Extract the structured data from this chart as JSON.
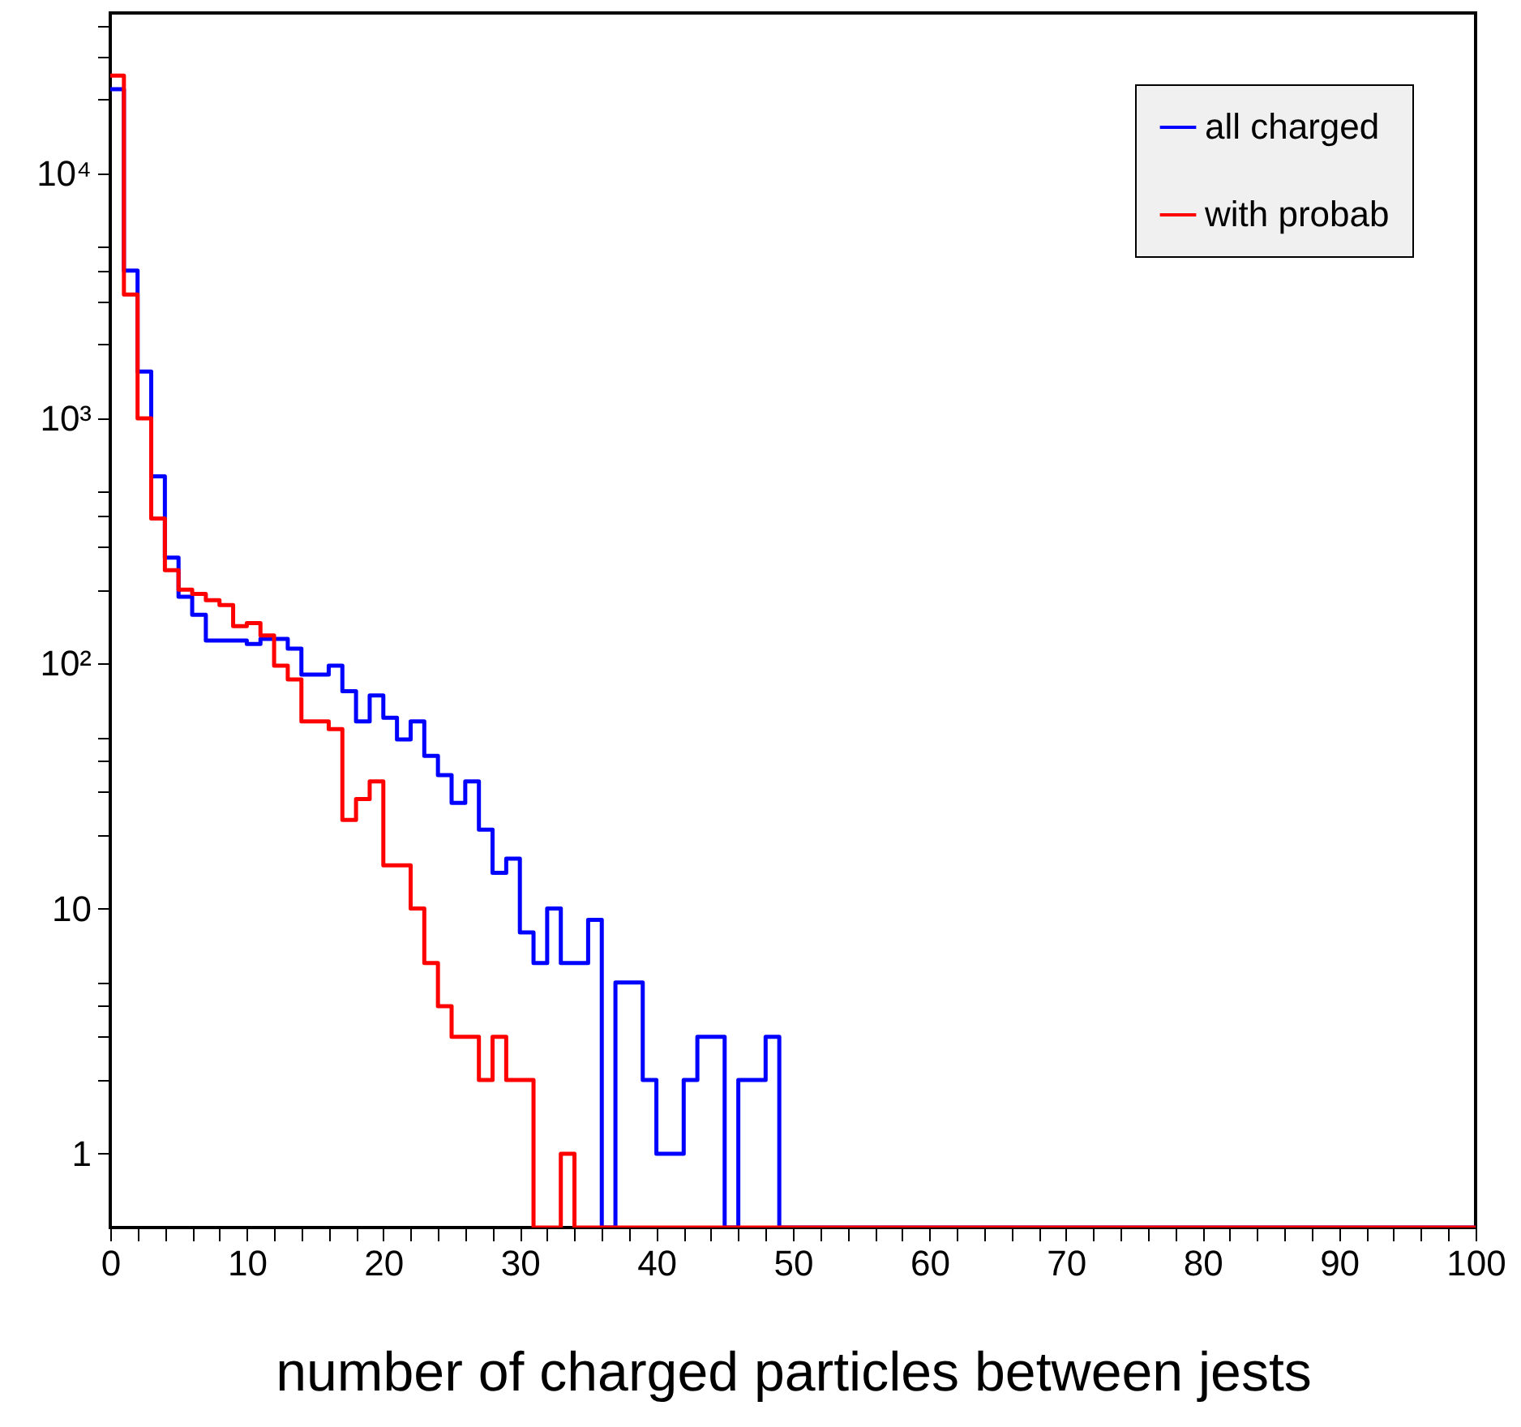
{
  "chart_data": {
    "type": "histogram",
    "xlabel": "number of charged particles between jests",
    "bins": [
      0,
      1,
      2,
      3,
      4,
      5,
      6,
      7,
      8,
      9,
      10,
      11,
      12,
      13,
      14,
      15,
      16,
      17,
      18,
      19,
      20,
      21,
      22,
      23,
      24,
      25,
      26,
      27,
      28,
      29,
      30,
      31,
      32,
      33,
      34,
      35,
      36,
      37,
      38,
      39,
      40,
      41,
      42,
      43,
      44,
      45,
      46,
      47,
      48,
      49,
      50,
      51,
      52,
      53,
      54,
      55,
      56,
      57,
      58,
      59,
      60,
      61,
      62,
      63,
      64,
      65,
      66,
      67,
      68,
      69,
      70,
      71,
      72,
      73,
      74,
      75,
      76,
      77,
      78,
      79,
      80,
      81,
      82,
      83,
      84,
      85,
      86,
      87,
      88,
      89,
      90,
      91,
      92,
      93,
      94,
      95,
      96,
      97,
      98,
      99,
      100
    ],
    "series": [
      {
        "name": "all charged",
        "color": "#0000ff",
        "values": [
          22000,
          4000,
          1550,
          580,
          270,
          187,
          158,
          124,
          124,
          124,
          120,
          126,
          126,
          115,
          90,
          90,
          98,
          77,
          58,
          74,
          60,
          49,
          58,
          42,
          35,
          27,
          33,
          21,
          14,
          16,
          8,
          6,
          10,
          6,
          6,
          9,
          null,
          5,
          5,
          2,
          1,
          1,
          2,
          3,
          3,
          null,
          2,
          2,
          3,
          null,
          null,
          null,
          null,
          null,
          null,
          null,
          null,
          null,
          null,
          null,
          null,
          null,
          null,
          null,
          null,
          null,
          null,
          null,
          null,
          null,
          null,
          null,
          null,
          null,
          null,
          null,
          null,
          null,
          null,
          null,
          null,
          null,
          null,
          null,
          null,
          null,
          null,
          null,
          null,
          null,
          null,
          null,
          null,
          null,
          null,
          null,
          null,
          null,
          null,
          null
        ]
      },
      {
        "name": "with probab",
        "color": "#ff0000",
        "values": [
          25000,
          3200,
          1000,
          390,
          240,
          200,
          192,
          181,
          173,
          142,
          146,
          130,
          98,
          86,
          58,
          58,
          54,
          23,
          28,
          33,
          15,
          15,
          10,
          6,
          4,
          3,
          3,
          2,
          3,
          2,
          2,
          null,
          null,
          1,
          null,
          null,
          null,
          null,
          null,
          null,
          null,
          null,
          null,
          null,
          null,
          null,
          null,
          null,
          null,
          null,
          null,
          null,
          null,
          null,
          null,
          null,
          null,
          null,
          null,
          null,
          null,
          null,
          null,
          null,
          null,
          null,
          null,
          null,
          null,
          null,
          null,
          null,
          null,
          null,
          null,
          null,
          null,
          null,
          null,
          null,
          null,
          null,
          null,
          null,
          null,
          null,
          null,
          null,
          null,
          null,
          null,
          null,
          null,
          null,
          null,
          null,
          null,
          null,
          null,
          null
        ]
      }
    ],
    "xlim": [
      0,
      100
    ],
    "xticks": [
      0,
      {
        "value": 2,
        "label": null
      },
      {
        "value": 4,
        "label": null
      },
      {
        "value": 6,
        "label": null
      },
      {
        "value": 8,
        "label": null
      },
      10,
      {
        "value": 12,
        "label": null
      },
      {
        "value": 14,
        "label": null
      },
      {
        "value": 16,
        "label": null
      },
      {
        "value": 18,
        "label": null
      },
      20,
      {
        "value": 22,
        "label": null
      },
      {
        "value": 24,
        "label": null
      },
      {
        "value": 26,
        "label": null
      },
      {
        "value": 28,
        "label": null
      },
      30,
      {
        "value": 32,
        "label": null
      },
      {
        "value": 34,
        "label": null
      },
      {
        "value": 36,
        "label": null
      },
      {
        "value": 38,
        "label": null
      },
      40,
      {
        "value": 42,
        "label": null
      },
      {
        "value": 44,
        "label": null
      },
      {
        "value": 46,
        "label": null
      },
      {
        "value": 48,
        "label": null
      },
      50,
      {
        "value": 52,
        "label": null
      },
      {
        "value": 54,
        "label": null
      },
      {
        "value": 56,
        "label": null
      },
      {
        "value": 58,
        "label": null
      },
      60,
      {
        "value": 62,
        "label": null
      },
      {
        "value": 64,
        "label": null
      },
      {
        "value": 66,
        "label": null
      },
      {
        "value": 68,
        "label": null
      },
      70,
      {
        "value": 72,
        "label": null
      },
      {
        "value": 74,
        "label": null
      },
      {
        "value": 76,
        "label": null
      },
      {
        "value": 78,
        "label": null
      },
      80,
      {
        "value": 82,
        "label": null
      },
      {
        "value": 84,
        "label": null
      },
      {
        "value": 86,
        "label": null
      },
      {
        "value": 88,
        "label": null
      },
      90,
      {
        "value": 92,
        "label": null
      },
      {
        "value": 94,
        "label": null
      },
      {
        "value": 96,
        "label": null
      },
      {
        "value": 98,
        "label": null
      },
      100
    ],
    "ylim": [
      0.5,
      45000
    ],
    "log": "y",
    "yticks": [
      1,
      {
        "value": 2,
        "label": null
      },
      {
        "value": 3,
        "label": null
      },
      {
        "value": 4,
        "label": null
      },
      {
        "value": 5,
        "label": null
      },
      10,
      {
        "value": 20,
        "label": null
      },
      {
        "value": 30,
        "label": null
      },
      {
        "value": 40,
        "label": null
      },
      {
        "value": 50,
        "label": null
      },
      {
        "value": 100,
        "label": "10²"
      },
      {
        "value": 200,
        "label": null
      },
      {
        "value": 300,
        "label": null
      },
      {
        "value": 400,
        "label": null
      },
      {
        "value": 500,
        "label": null
      },
      {
        "value": 1000,
        "label": "10³"
      },
      {
        "value": 2000,
        "label": null
      },
      {
        "value": 3000,
        "label": null
      },
      {
        "value": 4000,
        "label": null
      },
      {
        "value": 5000,
        "label": null
      },
      {
        "value": 10000,
        "label": "10⁴"
      },
      {
        "value": 20000,
        "label": null
      },
      {
        "value": 30000,
        "label": null
      },
      {
        "value": 40000,
        "label": null
      }
    ],
    "grid": false,
    "legend": "top right"
  }
}
